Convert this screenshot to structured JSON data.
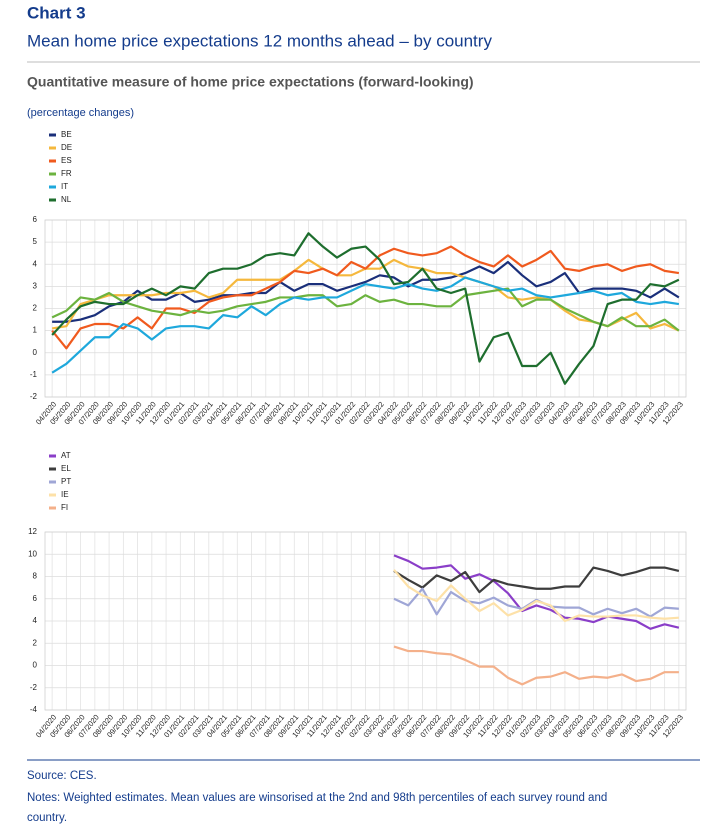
{
  "header": {
    "chart_label": "Chart 3",
    "title": "Mean home price expectations 12 months ahead – by country",
    "subtitle": "Quantitative measure of home price expectations (forward-looking)",
    "unit_note": "(percentage changes)"
  },
  "chart_data": [
    {
      "type": "line",
      "categories": [
        "04/2020",
        "05/2020",
        "06/2020",
        "07/2020",
        "08/2020",
        "09/2020",
        "10/2020",
        "11/2020",
        "12/2020",
        "01/2021",
        "02/2021",
        "03/2021",
        "04/2021",
        "05/2021",
        "06/2021",
        "07/2021",
        "08/2021",
        "09/2021",
        "10/2021",
        "11/2021",
        "12/2021",
        "01/2022",
        "02/2022",
        "03/2022",
        "04/2022",
        "05/2022",
        "06/2022",
        "07/2022",
        "08/2022",
        "09/2022",
        "10/2022",
        "11/2022",
        "12/2022",
        "01/2023",
        "02/2023",
        "03/2023",
        "04/2023",
        "05/2023",
        "06/2023",
        "07/2023",
        "08/2023",
        "09/2023",
        "10/2023",
        "11/2023",
        "12/2023"
      ],
      "series": [
        {
          "name": "BE",
          "color": "#1a2f7a",
          "values": [
            1.4,
            1.4,
            1.5,
            1.7,
            2.1,
            2.3,
            2.8,
            2.4,
            2.4,
            2.7,
            2.3,
            2.4,
            2.6,
            2.6,
            2.7,
            2.7,
            3.2,
            2.8,
            3.1,
            3.1,
            2.8,
            3.0,
            3.2,
            3.5,
            3.4,
            3.0,
            3.3,
            3.3,
            3.4,
            3.6,
            3.9,
            3.6,
            4.1,
            3.5,
            3.0,
            3.2,
            3.6,
            2.7,
            2.9,
            2.9,
            2.9,
            2.8,
            2.5,
            2.9,
            2.5
          ]
        },
        {
          "name": "DE",
          "color": "#f5b83d",
          "values": [
            1.1,
            1.2,
            2.2,
            2.4,
            2.6,
            2.6,
            2.6,
            2.6,
            2.7,
            2.7,
            2.8,
            2.5,
            2.7,
            3.3,
            3.3,
            3.3,
            3.3,
            3.7,
            4.2,
            3.8,
            3.5,
            3.5,
            3.8,
            3.8,
            4.2,
            3.9,
            3.8,
            3.6,
            3.6,
            3.4,
            3.2,
            3.0,
            2.5,
            2.4,
            2.5,
            2.4,
            1.9,
            1.5,
            1.4,
            1.2,
            1.5,
            1.8,
            1.1,
            1.3,
            1.0
          ]
        },
        {
          "name": "ES",
          "color": "#f05a1e",
          "values": [
            1.0,
            0.2,
            1.1,
            1.3,
            1.3,
            1.1,
            1.6,
            1.1,
            2.0,
            2.0,
            1.8,
            2.3,
            2.5,
            2.6,
            2.6,
            2.9,
            3.2,
            3.7,
            3.6,
            3.8,
            3.5,
            4.1,
            3.8,
            4.4,
            4.7,
            4.5,
            4.4,
            4.5,
            4.8,
            4.4,
            4.1,
            3.9,
            4.4,
            3.9,
            4.2,
            4.6,
            3.8,
            3.7,
            3.9,
            4.0,
            3.7,
            3.9,
            4.0,
            3.7,
            3.6
          ]
        },
        {
          "name": "FR",
          "color": "#6cb33f",
          "values": [
            1.6,
            1.9,
            2.5,
            2.4,
            2.7,
            2.3,
            2.1,
            1.9,
            1.8,
            1.7,
            1.9,
            1.8,
            1.9,
            2.1,
            2.2,
            2.3,
            2.5,
            2.5,
            2.6,
            2.6,
            2.1,
            2.2,
            2.6,
            2.3,
            2.4,
            2.2,
            2.2,
            2.1,
            2.1,
            2.6,
            2.7,
            2.8,
            2.9,
            2.1,
            2.4,
            2.4,
            2.0,
            1.7,
            1.4,
            1.2,
            1.6,
            1.2,
            1.2,
            1.5,
            1.0
          ]
        },
        {
          "name": "IT",
          "color": "#1ea8dc",
          "values": [
            -0.9,
            -0.5,
            0.1,
            0.7,
            0.7,
            1.3,
            1.1,
            0.6,
            1.1,
            1.2,
            1.2,
            1.1,
            1.7,
            1.6,
            2.1,
            1.7,
            2.2,
            2.5,
            2.4,
            2.5,
            2.5,
            2.8,
            3.1,
            3.0,
            2.9,
            3.1,
            2.9,
            2.8,
            3.0,
            3.4,
            3.2,
            3.0,
            2.8,
            2.9,
            2.6,
            2.5,
            2.6,
            2.7,
            2.8,
            2.6,
            2.7,
            2.3,
            2.2,
            2.3,
            2.2
          ]
        },
        {
          "name": "NL",
          "color": "#1e6e2e",
          "values": [
            0.8,
            1.5,
            2.1,
            2.3,
            2.2,
            2.2,
            2.6,
            2.9,
            2.6,
            3.0,
            2.9,
            3.6,
            3.8,
            3.8,
            4.0,
            4.4,
            4.5,
            4.4,
            5.4,
            4.8,
            4.3,
            4.7,
            4.8,
            4.2,
            3.1,
            3.2,
            3.8,
            2.9,
            2.7,
            2.9,
            -0.4,
            0.7,
            0.9,
            -0.6,
            -0.6,
            0.0,
            -1.4,
            -0.5,
            0.3,
            2.2,
            2.4,
            2.4,
            3.1,
            3.0,
            3.3
          ]
        }
      ],
      "ylim": [
        -2,
        6
      ],
      "yticks": [
        -2,
        -1,
        0,
        1,
        2,
        3,
        4,
        5,
        6
      ],
      "grid": true
    },
    {
      "type": "line",
      "categories": [
        "04/2020",
        "05/2020",
        "06/2020",
        "07/2020",
        "08/2020",
        "09/2020",
        "10/2020",
        "11/2020",
        "12/2020",
        "01/2021",
        "02/2021",
        "03/2021",
        "04/2021",
        "05/2021",
        "06/2021",
        "07/2021",
        "08/2021",
        "09/2021",
        "10/2021",
        "11/2021",
        "12/2021",
        "01/2022",
        "02/2022",
        "03/2022",
        "04/2022",
        "05/2022",
        "06/2022",
        "07/2022",
        "08/2022",
        "09/2022",
        "10/2022",
        "11/2022",
        "12/2022",
        "01/2023",
        "02/2023",
        "03/2023",
        "04/2023",
        "05/2023",
        "06/2023",
        "07/2023",
        "08/2023",
        "09/2023",
        "10/2023",
        "11/2023",
        "12/2023"
      ],
      "series": [
        {
          "name": "AT",
          "color": "#8a3ec8",
          "values": [
            null,
            null,
            null,
            null,
            null,
            null,
            null,
            null,
            null,
            null,
            null,
            null,
            null,
            null,
            null,
            null,
            null,
            null,
            null,
            null,
            null,
            null,
            null,
            null,
            9.9,
            9.4,
            8.7,
            8.8,
            9.0,
            7.8,
            8.2,
            7.6,
            6.5,
            4.9,
            5.4,
            5.0,
            4.3,
            4.2,
            3.9,
            4.4,
            4.2,
            4.0,
            3.3,
            3.7,
            3.4
          ]
        },
        {
          "name": "EL",
          "color": "#3d3d3d",
          "values": [
            null,
            null,
            null,
            null,
            null,
            null,
            null,
            null,
            null,
            null,
            null,
            null,
            null,
            null,
            null,
            null,
            null,
            null,
            null,
            null,
            null,
            null,
            null,
            null,
            8.5,
            7.7,
            7.0,
            8.1,
            7.6,
            8.4,
            6.6,
            7.7,
            7.3,
            7.1,
            6.9,
            6.9,
            7.1,
            7.1,
            8.8,
            8.5,
            8.1,
            8.4,
            8.8,
            8.8,
            8.5
          ]
        },
        {
          "name": "PT",
          "color": "#9fa6d6",
          "values": [
            null,
            null,
            null,
            null,
            null,
            null,
            null,
            null,
            null,
            null,
            null,
            null,
            null,
            null,
            null,
            null,
            null,
            null,
            null,
            null,
            null,
            null,
            null,
            null,
            6.0,
            5.4,
            6.9,
            4.6,
            6.6,
            5.8,
            5.6,
            6.1,
            5.4,
            5.1,
            5.9,
            5.3,
            5.2,
            5.2,
            4.6,
            5.1,
            4.7,
            5.1,
            4.4,
            5.2,
            5.1
          ]
        },
        {
          "name": "IE",
          "color": "#fde1a8",
          "values": [
            null,
            null,
            null,
            null,
            null,
            null,
            null,
            null,
            null,
            null,
            null,
            null,
            null,
            null,
            null,
            null,
            null,
            null,
            null,
            null,
            null,
            null,
            null,
            null,
            8.6,
            7.1,
            6.3,
            5.8,
            7.2,
            6.0,
            4.9,
            5.6,
            4.5,
            5.0,
            5.8,
            5.4,
            4.0,
            4.5,
            4.4,
            4.4,
            4.5,
            4.5,
            4.3,
            4.2,
            4.3
          ]
        },
        {
          "name": "FI",
          "color": "#f4b08a",
          "values": [
            null,
            null,
            null,
            null,
            null,
            null,
            null,
            null,
            null,
            null,
            null,
            null,
            null,
            null,
            null,
            null,
            null,
            null,
            null,
            null,
            null,
            null,
            null,
            null,
            1.7,
            1.3,
            1.3,
            1.1,
            1.0,
            0.5,
            -0.1,
            -0.1,
            -1.1,
            -1.7,
            -1.1,
            -1.0,
            -0.6,
            -1.2,
            -1.0,
            -1.1,
            -0.8,
            -1.4,
            -1.2,
            -0.6,
            -0.6
          ]
        }
      ],
      "ylim": [
        -4,
        12
      ],
      "yticks": [
        -4,
        -2,
        0,
        2,
        4,
        6,
        8,
        10,
        12
      ],
      "grid": true
    }
  ],
  "footer": {
    "source": "Source: CES.",
    "notes": [
      "Notes: Weighted estimates. Mean values are winsorised at the 2nd and 98th percentiles of each survey round and",
      "country."
    ]
  }
}
